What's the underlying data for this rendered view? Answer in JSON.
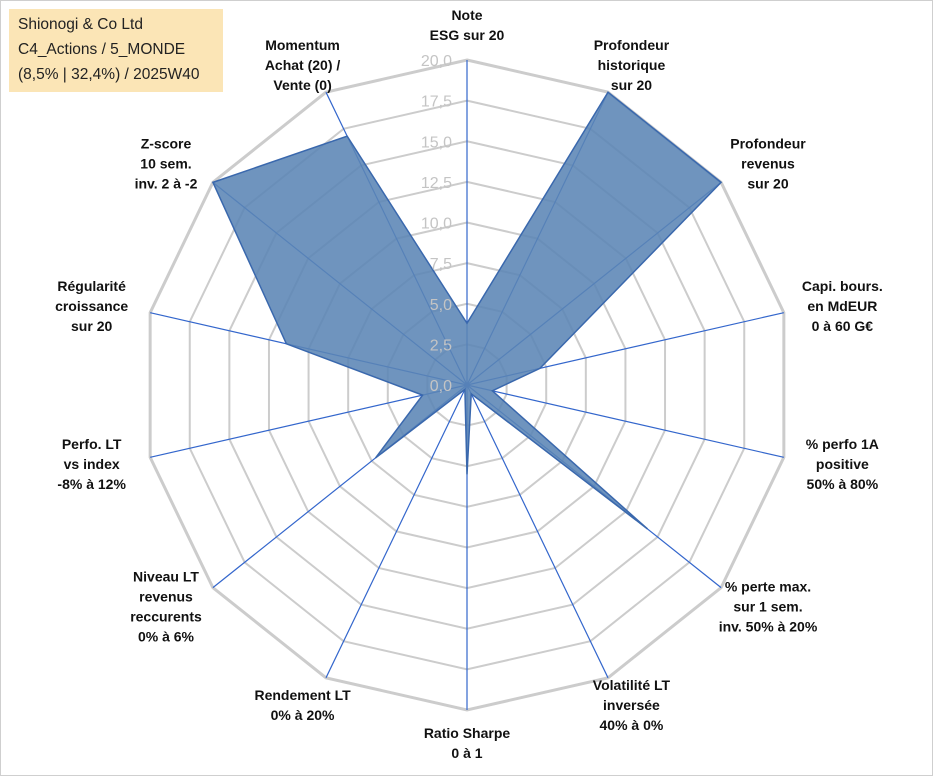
{
  "title": {
    "line1": "Shionogi & Co Ltd",
    "line2": "C4_Actions / 5_MONDE",
    "line3": "(8,5% | 32,4%) / 2025W40"
  },
  "chart_data": {
    "type": "radar",
    "rmin": 0,
    "rmax": 20,
    "tick_step": 2.5,
    "tick_labels": [
      "0,0",
      "2,5",
      "5,0",
      "7,5",
      "10,0",
      "12,5",
      "15,0",
      "17,5",
      "20,0"
    ],
    "axes": [
      {
        "label": [
          "Note",
          "ESG sur 20"
        ],
        "value": 3.8
      },
      {
        "label": [
          "Profondeur",
          "historique",
          "sur 20"
        ],
        "value": 20
      },
      {
        "label": [
          "Profondeur",
          "revenus",
          "sur 20"
        ],
        "value": 20
      },
      {
        "label": [
          "Capi. bours.",
          "en MdEUR",
          "0 à 60 G€"
        ],
        "value": 4.6
      },
      {
        "label": [
          "% perfo 1A",
          "positive",
          "50% à 80%"
        ],
        "value": 1.6
      },
      {
        "label": [
          "% perte max.",
          "sur 1 sem.",
          "inv. 50% à 20%"
        ],
        "value": 14.2
      },
      {
        "label": [
          "Volatilité LT",
          "inversée",
          "40% à 0%"
        ],
        "value": 0.6
      },
      {
        "label": [
          "Ratio Sharpe",
          "0 à 1"
        ],
        "value": 5.5
      },
      {
        "label": [
          "Rendement LT",
          "0% à 20%"
        ],
        "value": 0.3
      },
      {
        "label": [
          "Niveau LT",
          "revenus",
          "reccurents",
          "0% à 6%"
        ],
        "value": 7.2
      },
      {
        "label": [
          "Perfo. LT",
          "vs index",
          "-8% à 12%"
        ],
        "value": 2.8
      },
      {
        "label": [
          "Régularité",
          "croissance",
          "sur 20"
        ],
        "value": 11.4
      },
      {
        "label": [
          "Z-score",
          "10 sem.",
          "inv. 2 à -2"
        ],
        "value": 20
      },
      {
        "label": [
          "Momentum",
          "Achat (20) /",
          "Vente (0)"
        ],
        "value": 17
      }
    ],
    "series": [
      {
        "name": "Shionogi & Co Ltd",
        "color": "#5b85b5",
        "line_color": "#3a68ad"
      }
    ],
    "grid_color": "#cccccc",
    "spoke_color": "#3366cc"
  }
}
